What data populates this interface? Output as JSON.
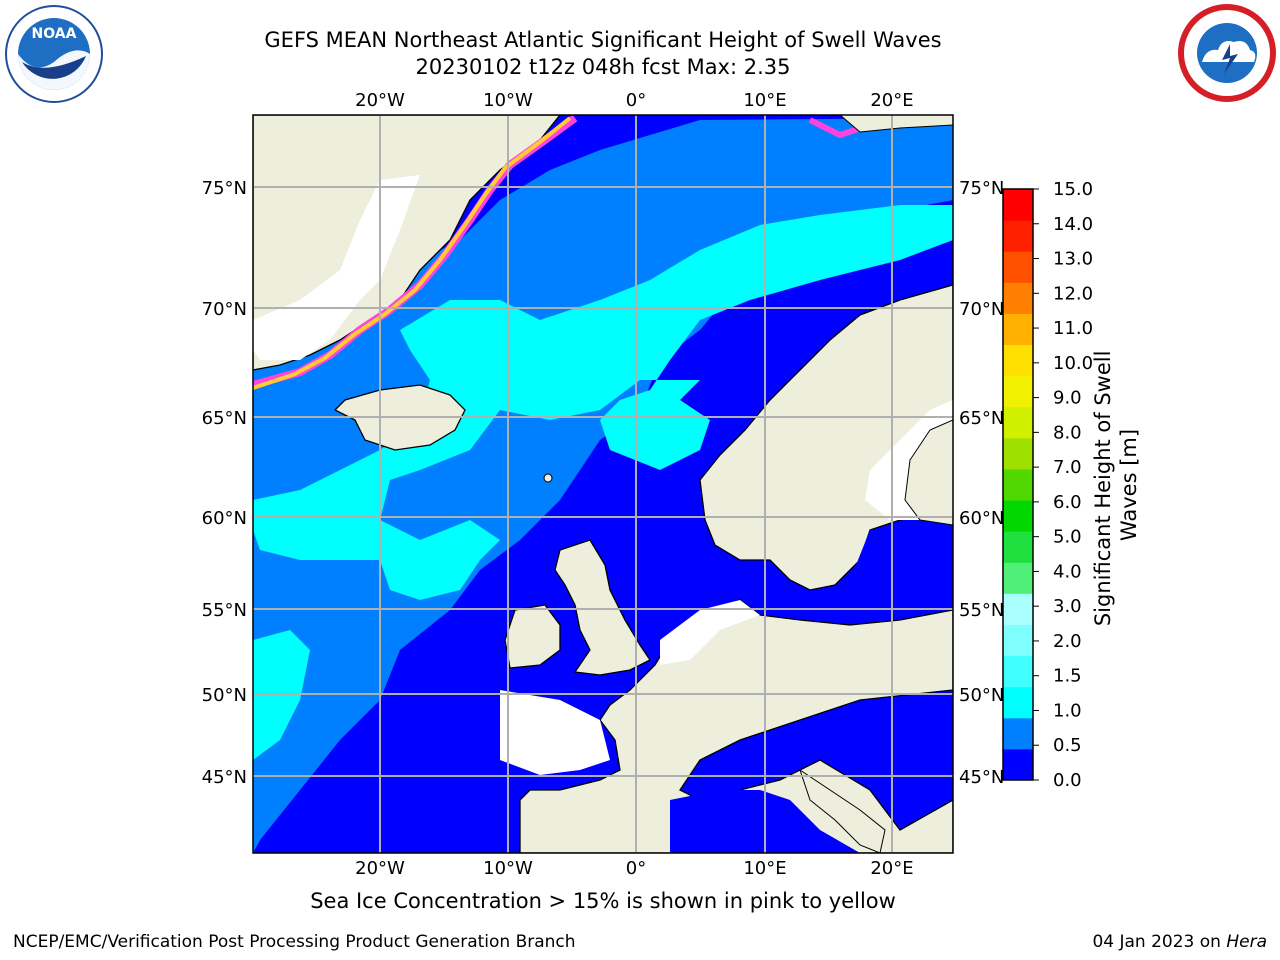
{
  "title": "GEFS MEAN Northeast Atlantic Significant Height of Swell Waves",
  "subtitle": "20230102 t12z 048h fcst   Max: 2.35",
  "caption": "Sea Ice Concentration > 15% is shown in pink to yellow",
  "footer_left": "NCEP/EMC/Verification Post Processing Product Generation Branch",
  "footer_date": "04 Jan 2023 on ",
  "footer_host": "Hera",
  "logos": {
    "noaa": {
      "icon": "noaa-logo",
      "text": "NOAA"
    },
    "nws": {
      "icon": "national-weather-service-logo"
    }
  },
  "map": {
    "lon_ticks": [
      "20°W",
      "10°W",
      "0°",
      "10°E",
      "20°E"
    ],
    "lat_ticks": [
      "75°N",
      "70°N",
      "65°N",
      "60°N",
      "55°N",
      "50°N",
      "45°N"
    ],
    "colors": {
      "ocean_low": "#0000ff",
      "ocean_mid": "#0080ff",
      "ocean_high": "#00ffff",
      "land": "#eeeedc",
      "ice": "#ff44dd",
      "missing": "#ffffff"
    }
  },
  "colorbar": {
    "label": "Significant Height of Swell Waves [m]",
    "ticks": [
      "15.0",
      "14.0",
      "13.0",
      "12.0",
      "11.0",
      "10.0",
      "9.0",
      "8.0",
      "7.0",
      "6.0",
      "5.0",
      "4.0",
      "3.0",
      "2.0",
      "1.5",
      "1.0",
      "0.5",
      "0.0"
    ],
    "colors": [
      "#0000ff",
      "#0080ff",
      "#00ffff",
      "#40ffff",
      "#80ffff",
      "#aaffff",
      "#50f078",
      "#20e040",
      "#00d800",
      "#50d800",
      "#a0e000",
      "#d0f000",
      "#f0f000",
      "#ffe000",
      "#ffb000",
      "#ff8000",
      "#ff5000",
      "#ff2000",
      "#ff0000"
    ]
  }
}
